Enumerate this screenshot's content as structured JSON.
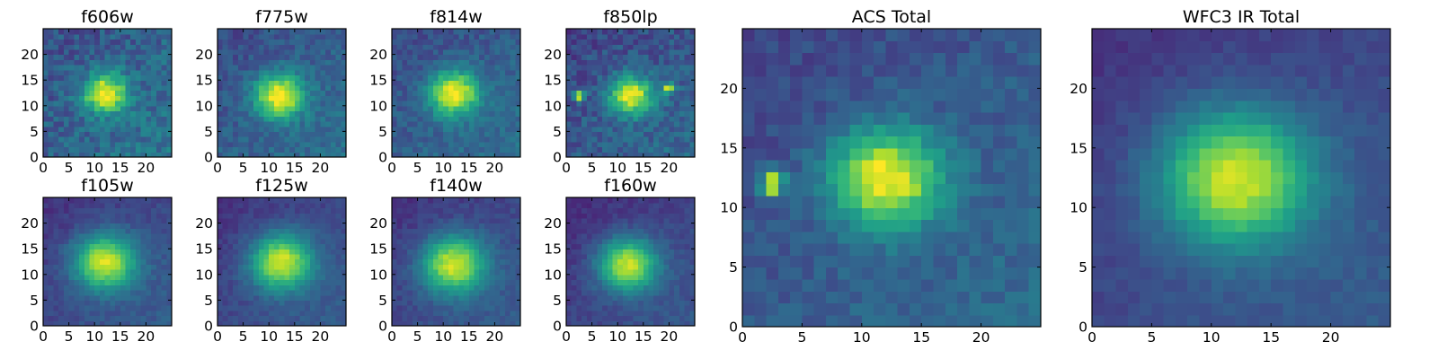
{
  "chart_data": [
    {
      "type": "heatmap",
      "title": "f606w",
      "xlim": [
        0,
        25
      ],
      "ylim": [
        0,
        25
      ],
      "xticks": [
        0,
        5,
        10,
        15,
        20
      ],
      "yticks": [
        0,
        5,
        10,
        15,
        20
      ],
      "colormap": "viridis",
      "grid": false,
      "peak_center": [
        12,
        12.5
      ],
      "spread": 2.6,
      "bg_level": 0.32,
      "noise": 0.22,
      "extra_blobs": []
    },
    {
      "type": "heatmap",
      "title": "f775w",
      "xlim": [
        0,
        25
      ],
      "ylim": [
        0,
        25
      ],
      "xticks": [
        0,
        5,
        10,
        15,
        20
      ],
      "yticks": [
        0,
        5,
        10,
        15,
        20
      ],
      "colormap": "viridis",
      "grid": false,
      "peak_center": [
        12,
        12
      ],
      "spread": 3.0,
      "bg_level": 0.3,
      "noise": 0.16,
      "extra_blobs": []
    },
    {
      "type": "heatmap",
      "title": "f814w",
      "xlim": [
        0,
        25
      ],
      "ylim": [
        0,
        25
      ],
      "xticks": [
        0,
        5,
        10,
        15,
        20
      ],
      "yticks": [
        0,
        5,
        10,
        15,
        20
      ],
      "colormap": "viridis",
      "grid": false,
      "peak_center": [
        12,
        12.5
      ],
      "spread": 3.0,
      "bg_level": 0.3,
      "noise": 0.15,
      "extra_blobs": []
    },
    {
      "type": "heatmap",
      "title": "f850lp",
      "xlim": [
        0,
        25
      ],
      "ylim": [
        0,
        25
      ],
      "xticks": [
        0,
        5,
        10,
        15,
        20
      ],
      "yticks": [
        0,
        5,
        10,
        15,
        20
      ],
      "colormap": "viridis",
      "grid": false,
      "peak_center": [
        12.5,
        12
      ],
      "spread": 2.6,
      "bg_level": 0.28,
      "noise": 0.2,
      "extra_blobs": [
        [
          2.5,
          12
        ],
        [
          20,
          13.5
        ]
      ]
    },
    {
      "type": "heatmap",
      "title": "f105w",
      "xlim": [
        0,
        25
      ],
      "ylim": [
        0,
        25
      ],
      "xticks": [
        0,
        5,
        10,
        15,
        20
      ],
      "yticks": [
        0,
        5,
        10,
        15,
        20
      ],
      "colormap": "viridis",
      "grid": false,
      "peak_center": [
        12,
        12.5
      ],
      "spread": 3.8,
      "bg_level": 0.22,
      "noise": 0.09,
      "extra_blobs": []
    },
    {
      "type": "heatmap",
      "title": "f125w",
      "xlim": [
        0,
        25
      ],
      "ylim": [
        0,
        25
      ],
      "xticks": [
        0,
        5,
        10,
        15,
        20
      ],
      "yticks": [
        0,
        5,
        10,
        15,
        20
      ],
      "colormap": "viridis",
      "grid": false,
      "peak_center": [
        12.5,
        12.5
      ],
      "spread": 3.8,
      "bg_level": 0.22,
      "noise": 0.09,
      "extra_blobs": []
    },
    {
      "type": "heatmap",
      "title": "f140w",
      "xlim": [
        0,
        25
      ],
      "ylim": [
        0,
        25
      ],
      "xticks": [
        0,
        5,
        10,
        15,
        20
      ],
      "yticks": [
        0,
        5,
        10,
        15,
        20
      ],
      "colormap": "viridis",
      "grid": false,
      "peak_center": [
        12,
        12
      ],
      "spread": 3.9,
      "bg_level": 0.22,
      "noise": 0.09,
      "extra_blobs": []
    },
    {
      "type": "heatmap",
      "title": "f160w",
      "xlim": [
        0,
        25
      ],
      "ylim": [
        0,
        25
      ],
      "xticks": [
        0,
        5,
        10,
        15,
        20
      ],
      "yticks": [
        0,
        5,
        10,
        15,
        20
      ],
      "colormap": "viridis",
      "grid": false,
      "peak_center": [
        12,
        12
      ],
      "spread": 3.6,
      "bg_level": 0.2,
      "noise": 0.09,
      "extra_blobs": []
    },
    {
      "type": "heatmap",
      "title": "ACS Total",
      "xlim": [
        0,
        25
      ],
      "ylim": [
        0,
        25
      ],
      "xticks": [
        0,
        5,
        10,
        15,
        20
      ],
      "yticks": [
        0,
        5,
        10,
        15,
        20
      ],
      "colormap": "viridis",
      "grid": false,
      "peak_center": [
        12,
        12.5
      ],
      "spread": 2.9,
      "bg_level": 0.28,
      "noise": 0.13,
      "extra_blobs": [
        [
          2.5,
          12
        ]
      ]
    },
    {
      "type": "heatmap",
      "title": "WFC3 IR Total",
      "xlim": [
        0,
        25
      ],
      "ylim": [
        0,
        25
      ],
      "xticks": [
        0,
        5,
        10,
        15,
        20
      ],
      "yticks": [
        0,
        5,
        10,
        15,
        20
      ],
      "colormap": "viridis",
      "grid": false,
      "peak_center": [
        12,
        12.5
      ],
      "spread": 4.0,
      "bg_level": 0.22,
      "noise": 0.07,
      "extra_blobs": []
    }
  ]
}
